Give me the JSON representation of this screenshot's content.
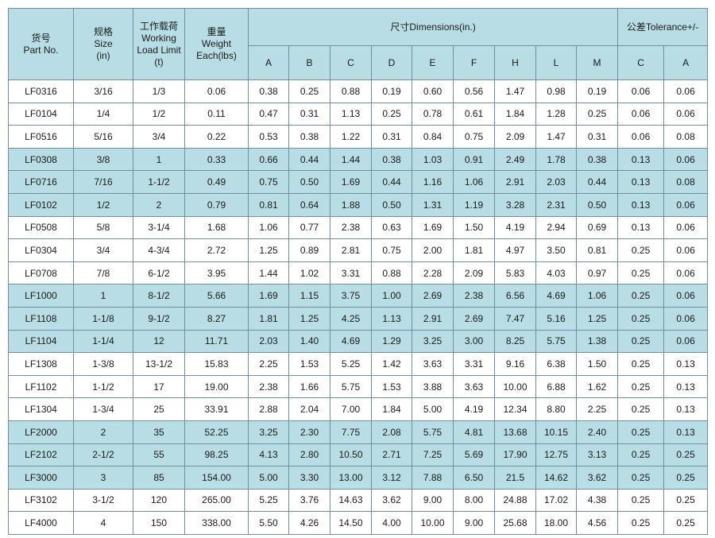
{
  "header": {
    "part_no": [
      "货号",
      "Part No."
    ],
    "size": [
      "规格",
      "Size",
      "(in)"
    ],
    "wll": [
      "工作载荷",
      "Working",
      "Load Limit",
      "(t)"
    ],
    "weight": [
      "重量",
      "Weight",
      "Each(lbs)"
    ],
    "dimensions": "尺寸Dimensions(in.)",
    "tolerance": "公差Tolerance+/-",
    "dim_cols": [
      "A",
      "B",
      "C",
      "D",
      "E",
      "F",
      "H",
      "L",
      "M"
    ],
    "tol_cols": [
      "C",
      "A"
    ]
  },
  "rows": [
    {
      "shaded": false,
      "cells": [
        "LF0316",
        "3/16",
        "1/3",
        "0.06",
        "0.38",
        "0.25",
        "0.88",
        "0.19",
        "0.60",
        "0.56",
        "1.47",
        "0.98",
        "0.19",
        "0.06",
        "0.06"
      ]
    },
    {
      "shaded": false,
      "cells": [
        "LF0104",
        "1/4",
        "1/2",
        "0.11",
        "0.47",
        "0.31",
        "1.13",
        "0.25",
        "0.78",
        "0.61",
        "1.84",
        "1.28",
        "0.25",
        "0.06",
        "0.06"
      ]
    },
    {
      "shaded": false,
      "cells": [
        "LF0516",
        "5/16",
        "3/4",
        "0.22",
        "0.53",
        "0.38",
        "1.22",
        "0.31",
        "0.84",
        "0.75",
        "2.09",
        "1.47",
        "0.31",
        "0.06",
        "0.08"
      ]
    },
    {
      "shaded": true,
      "cells": [
        "LF0308",
        "3/8",
        "1",
        "0.33",
        "0.66",
        "0.44",
        "1.44",
        "0.38",
        "1.03",
        "0.91",
        "2.49",
        "1.78",
        "0.38",
        "0.13",
        "0.06"
      ]
    },
    {
      "shaded": true,
      "cells": [
        "LF0716",
        "7/16",
        "1-1/2",
        "0.49",
        "0.75",
        "0.50",
        "1.69",
        "0.44",
        "1.16",
        "1.06",
        "2.91",
        "2.03",
        "0.44",
        "0.13",
        "0.08"
      ]
    },
    {
      "shaded": true,
      "cells": [
        "LF0102",
        "1/2",
        "2",
        "0.79",
        "0.81",
        "0.64",
        "1.88",
        "0.50",
        "1.31",
        "1.19",
        "3.28",
        "2.31",
        "0.50",
        "0.13",
        "0.06"
      ]
    },
    {
      "shaded": false,
      "cells": [
        "LF0508",
        "5/8",
        "3-1/4",
        "1.68",
        "1.06",
        "0.77",
        "2.38",
        "0.63",
        "1.69",
        "1.50",
        "4.19",
        "2.94",
        "0.69",
        "0.13",
        "0.06"
      ]
    },
    {
      "shaded": false,
      "cells": [
        "LF0304",
        "3/4",
        "4-3/4",
        "2.72",
        "1.25",
        "0.89",
        "2.81",
        "0.75",
        "2.00",
        "1.81",
        "4.97",
        "3.50",
        "0.81",
        "0.25",
        "0.06"
      ]
    },
    {
      "shaded": false,
      "cells": [
        "LF0708",
        "7/8",
        "6-1/2",
        "3.95",
        "1.44",
        "1.02",
        "3.31",
        "0.88",
        "2.28",
        "2.09",
        "5.83",
        "4.03",
        "0.97",
        "0.25",
        "0.06"
      ]
    },
    {
      "shaded": true,
      "cells": [
        "LF1000",
        "1",
        "8-1/2",
        "5.66",
        "1.69",
        "1.15",
        "3.75",
        "1.00",
        "2.69",
        "2.38",
        "6.56",
        "4.69",
        "1.06",
        "0.25",
        "0.06"
      ]
    },
    {
      "shaded": true,
      "cells": [
        "LF1108",
        "1-1/8",
        "9-1/2",
        "8.27",
        "1.81",
        "1.25",
        "4.25",
        "1.13",
        "2.91",
        "2.69",
        "7.47",
        "5.16",
        "1.25",
        "0.25",
        "0.06"
      ]
    },
    {
      "shaded": true,
      "cells": [
        "LF1104",
        "1-1/4",
        "12",
        "11.71",
        "2.03",
        "1.40",
        "4.69",
        "1.29",
        "3.25",
        "3.00",
        "8.25",
        "5.75",
        "1.38",
        "0.25",
        "0.06"
      ]
    },
    {
      "shaded": false,
      "cells": [
        "LF1308",
        "1-3/8",
        "13-1/2",
        "15.83",
        "2.25",
        "1.53",
        "5.25",
        "1.42",
        "3.63",
        "3.31",
        "9.16",
        "6.38",
        "1.50",
        "0.25",
        "0.13"
      ]
    },
    {
      "shaded": false,
      "cells": [
        "LF1102",
        "1-1/2",
        "17",
        "19.00",
        "2.38",
        "1.66",
        "5.75",
        "1.53",
        "3.88",
        "3.63",
        "10.00",
        "6.88",
        "1.62",
        "0.25",
        "0.13"
      ]
    },
    {
      "shaded": false,
      "cells": [
        "LF1304",
        "1-3/4",
        "25",
        "33.91",
        "2.88",
        "2.04",
        "7.00",
        "1.84",
        "5.00",
        "4.19",
        "12.34",
        "8.80",
        "2.25",
        "0.25",
        "0.13"
      ]
    },
    {
      "shaded": true,
      "cells": [
        "LF2000",
        "2",
        "35",
        "52.25",
        "3.25",
        "2.30",
        "7.75",
        "2.08",
        "5.75",
        "4.81",
        "13.68",
        "10.15",
        "2.40",
        "0.25",
        "0.13"
      ]
    },
    {
      "shaded": true,
      "cells": [
        "LF2102",
        "2-1/2",
        "55",
        "98.25",
        "4.13",
        "2.80",
        "10.50",
        "2.71",
        "7.25",
        "5.69",
        "17.90",
        "12.75",
        "3.13",
        "0.25",
        "0.25"
      ]
    },
    {
      "shaded": true,
      "cells": [
        "LF3000",
        "3",
        "85",
        "154.00",
        "5.00",
        "3.30",
        "13.00",
        "3.12",
        "7.88",
        "6.50",
        "21.5",
        "14.62",
        "3.62",
        "0.25",
        "0.25"
      ]
    },
    {
      "shaded": false,
      "cells": [
        "LF3102",
        "3-1/2",
        "120",
        "265.00",
        "5.25",
        "3.76",
        "14.63",
        "3.62",
        "9.00",
        "8.00",
        "24.88",
        "17.02",
        "4.38",
        "0.25",
        "0.25"
      ]
    },
    {
      "shaded": false,
      "cells": [
        "LF4000",
        "4",
        "150",
        "338.00",
        "5.50",
        "4.26",
        "14.50",
        "4.00",
        "10.00",
        "9.00",
        "25.68",
        "18.00",
        "4.56",
        "0.25",
        "0.25"
      ]
    }
  ]
}
